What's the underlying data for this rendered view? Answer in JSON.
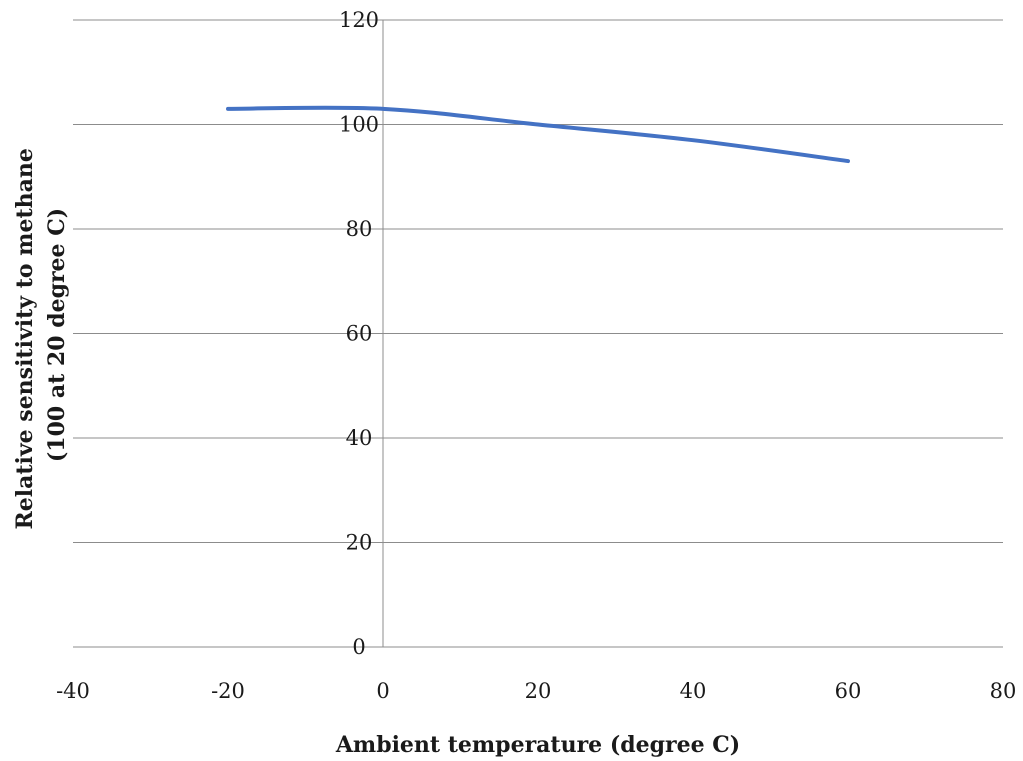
{
  "chart_data": {
    "type": "scatter",
    "title": "",
    "xlabel": "Ambient temperature (degree C)",
    "ylabel_lines": [
      "Relative sensitivity to methane",
      "(100 at 20 degree C)"
    ],
    "xlim": [
      -40,
      80
    ],
    "ylim": [
      0,
      120
    ],
    "x_ticks": [
      -40,
      -20,
      0,
      20,
      40,
      60,
      80
    ],
    "x_tick_labels": [
      "-40",
      "-20",
      "0",
      "20",
      "40",
      "60",
      "80"
    ],
    "y_ticks": [
      0,
      20,
      40,
      60,
      80,
      100,
      120
    ],
    "y_tick_labels": [
      "0",
      "20",
      "40",
      "60",
      "80",
      "100",
      "120"
    ],
    "grid": "horizontal",
    "legend": "none",
    "smooth": true,
    "series": [
      {
        "color": "#4472c4",
        "points": [
          [
            -20,
            103
          ],
          [
            0,
            103
          ],
          [
            20,
            100
          ],
          [
            40,
            97
          ],
          [
            60,
            93
          ]
        ]
      }
    ]
  }
}
